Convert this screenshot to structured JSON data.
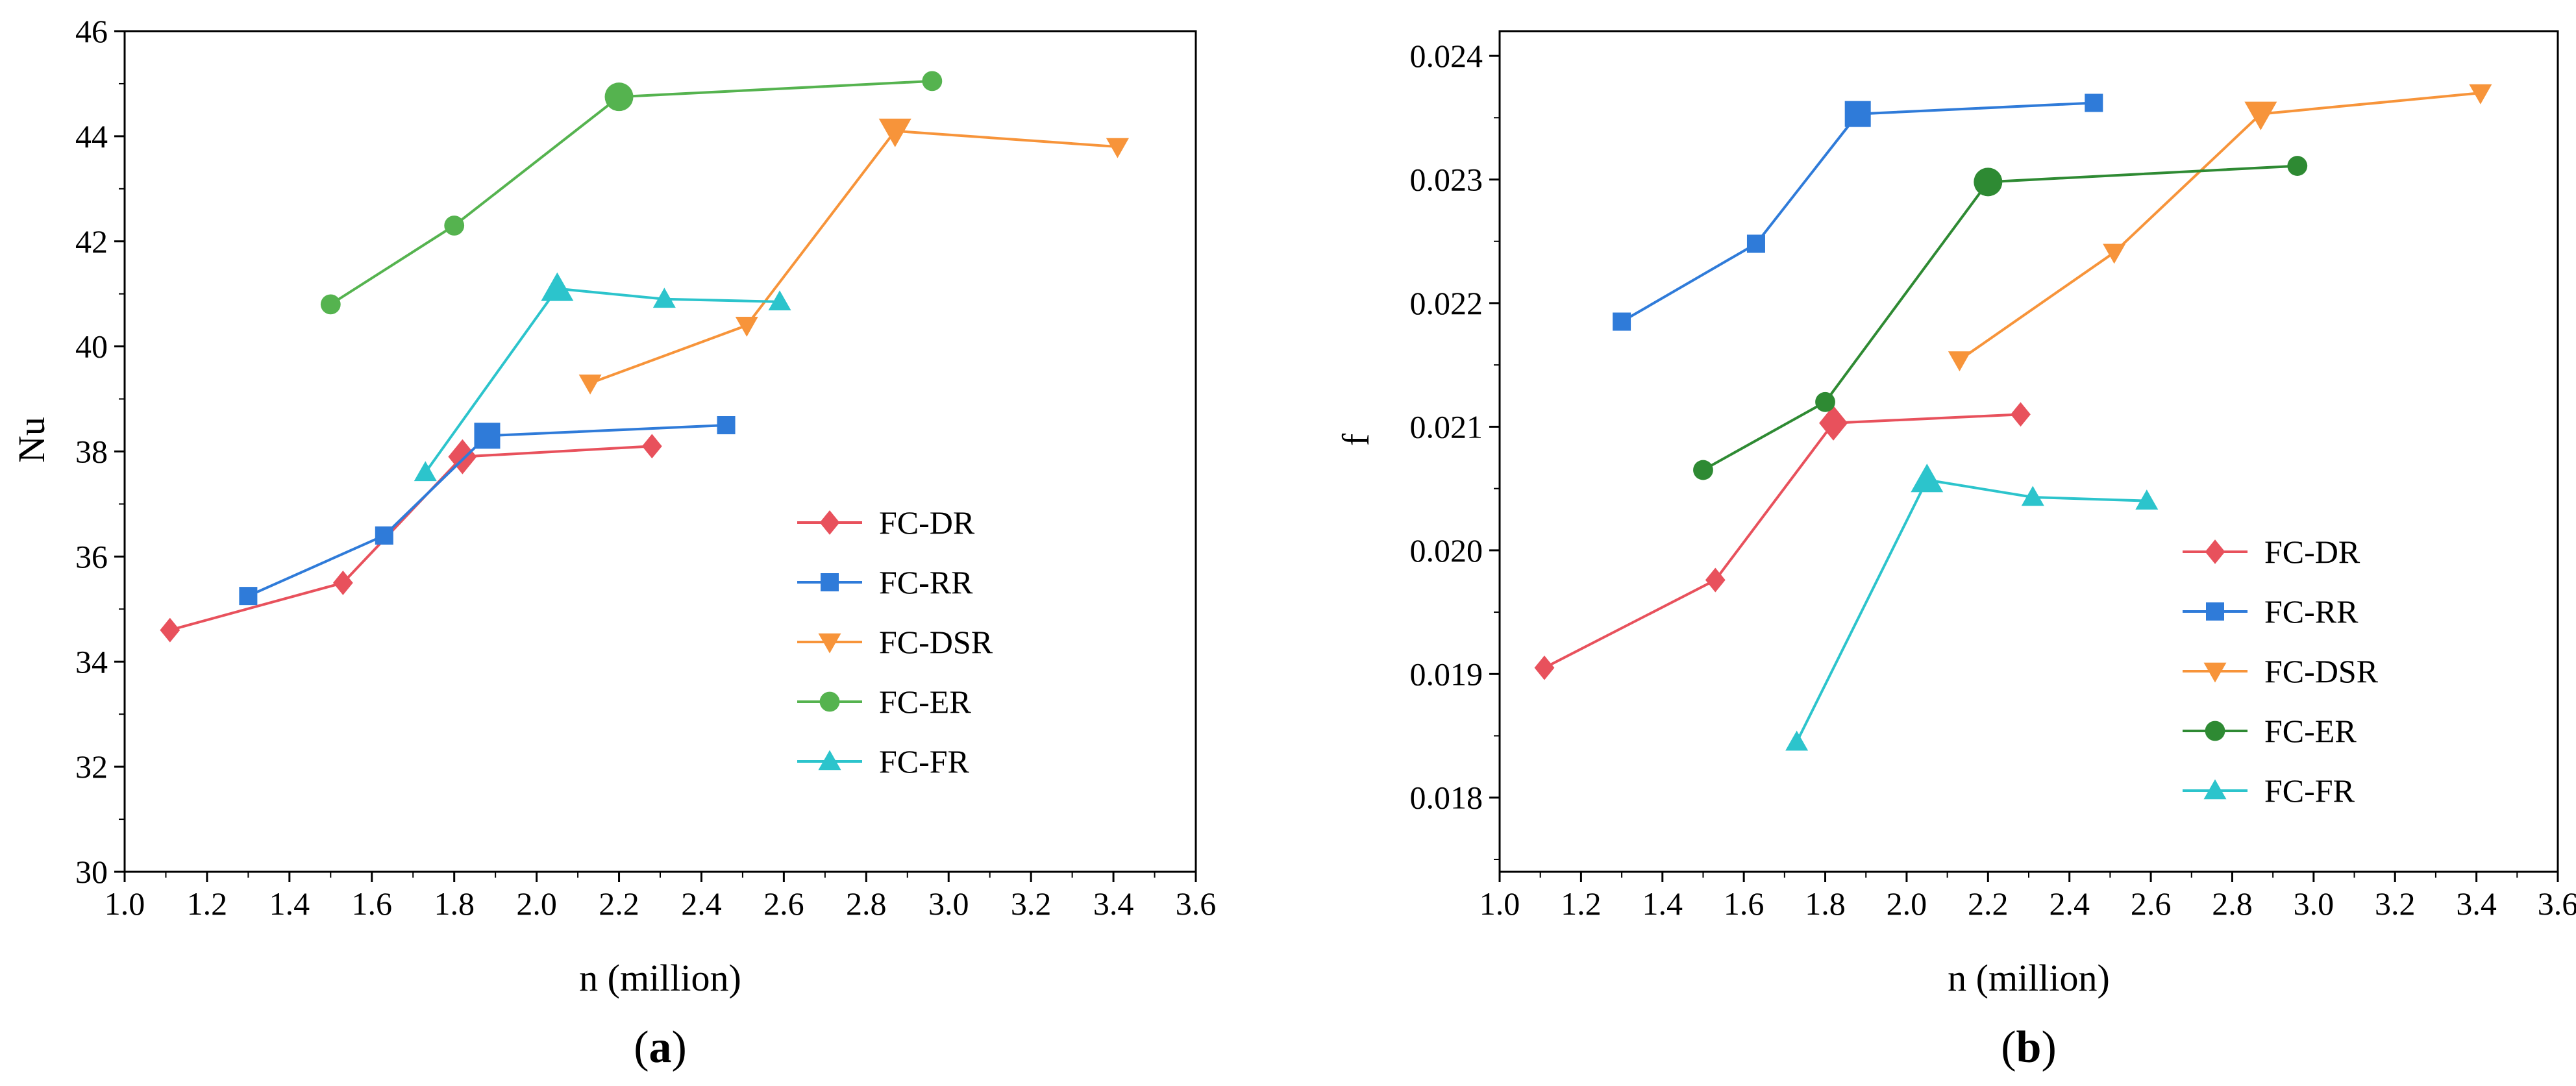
{
  "chart_data": [
    {
      "type": "line",
      "panel_label": "a",
      "xlabel": "n (million)",
      "ylabel": "Nu",
      "xlim": [
        1.0,
        3.6
      ],
      "ylim": [
        30,
        46
      ],
      "xticks": [
        "1.0",
        "1.2",
        "1.4",
        "1.6",
        "1.8",
        "2.0",
        "2.2",
        "2.4",
        "2.6",
        "2.8",
        "3.0",
        "3.2",
        "3.4",
        "3.6"
      ],
      "yticks": [
        "30",
        "32",
        "34",
        "36",
        "38",
        "40",
        "42",
        "44",
        "46"
      ],
      "grid": false,
      "legend_position": "right",
      "series": [
        {
          "name": "FC-DR",
          "color": "#e8515c",
          "marker": "diamond",
          "x": [
            1.11,
            1.53,
            1.82,
            2.28
          ],
          "y": [
            34.6,
            35.5,
            37.9,
            38.1
          ],
          "highlight_index": 2
        },
        {
          "name": "FC-RR",
          "color": "#2f7bd9",
          "marker": "square",
          "x": [
            1.3,
            1.63,
            1.88,
            2.46
          ],
          "y": [
            35.25,
            36.4,
            38.3,
            38.5
          ],
          "highlight_index": 2
        },
        {
          "name": "FC-DSR",
          "color": "#f7943a",
          "marker": "triangle-down",
          "x": [
            2.13,
            2.51,
            2.87,
            3.41
          ],
          "y": [
            39.3,
            40.4,
            44.1,
            43.8
          ],
          "highlight_index": 2
        },
        {
          "name": "FC-ER",
          "color": "#55b34f",
          "marker": "circle",
          "x": [
            1.5,
            1.8,
            2.2,
            2.96
          ],
          "y": [
            40.8,
            42.3,
            44.75,
            45.05
          ],
          "highlight_index": 2
        },
        {
          "name": "FC-FR",
          "color": "#2cc4cc",
          "marker": "triangle-up",
          "x": [
            1.73,
            2.05,
            2.31,
            2.59
          ],
          "y": [
            37.6,
            41.1,
            40.9,
            40.85
          ],
          "highlight_index": 1
        }
      ]
    },
    {
      "type": "line",
      "panel_label": "b",
      "xlabel": "n (million)",
      "ylabel": "f",
      "xlim": [
        1.0,
        3.6
      ],
      "ylim": [
        0.0174,
        0.0242
      ],
      "xticks": [
        "1.0",
        "1.2",
        "1.4",
        "1.6",
        "1.8",
        "2.0",
        "2.2",
        "2.4",
        "2.6",
        "2.8",
        "3.0",
        "3.2",
        "3.4",
        "3.6"
      ],
      "ytick_values": [
        0.018,
        0.019,
        0.02,
        0.021,
        0.022,
        0.023,
        0.024
      ],
      "yticks": [
        "0.018",
        "0.019",
        "0.020",
        "0.021",
        "0.022",
        "0.023",
        "0.024"
      ],
      "grid": false,
      "legend_position": "right",
      "series": [
        {
          "name": "FC-DR",
          "color": "#e8515c",
          "marker": "diamond",
          "x": [
            1.11,
            1.53,
            1.82,
            2.28
          ],
          "y": [
            0.01905,
            0.01976,
            0.02103,
            0.0211
          ],
          "highlight_index": 2
        },
        {
          "name": "FC-RR",
          "color": "#2f7bd9",
          "marker": "square",
          "x": [
            1.3,
            1.63,
            1.88,
            2.46
          ],
          "y": [
            0.02185,
            0.02248,
            0.02353,
            0.02362
          ],
          "highlight_index": 2
        },
        {
          "name": "FC-DSR",
          "color": "#f7943a",
          "marker": "triangle-down",
          "x": [
            2.13,
            2.51,
            2.87,
            3.41
          ],
          "y": [
            0.02154,
            0.02241,
            0.02353,
            0.0237
          ],
          "highlight_index": 2
        },
        {
          "name": "FC-ER",
          "color": "#2e8a33",
          "marker": "circle",
          "x": [
            1.5,
            1.8,
            2.2,
            2.96
          ],
          "y": [
            0.02065,
            0.0212,
            0.02298,
            0.02311
          ],
          "highlight_index": 2
        },
        {
          "name": "FC-FR",
          "color": "#2cc4cc",
          "marker": "triangle-up",
          "x": [
            1.73,
            2.05,
            2.31,
            2.59
          ],
          "y": [
            0.01845,
            0.02057,
            0.02043,
            0.0204
          ],
          "highlight_index": 1
        }
      ]
    }
  ]
}
